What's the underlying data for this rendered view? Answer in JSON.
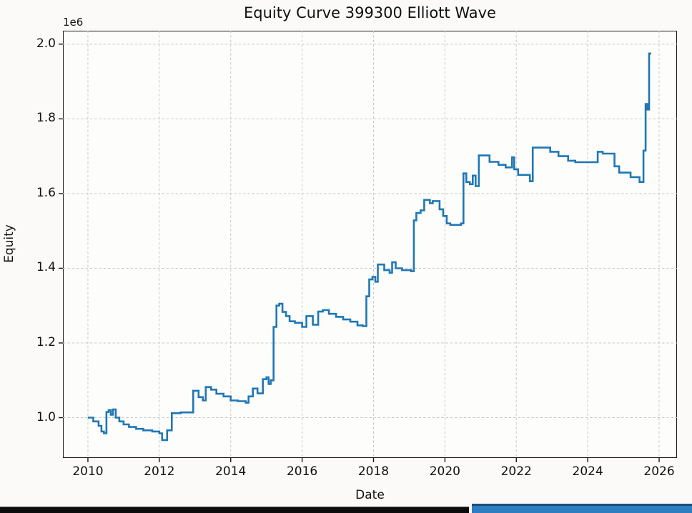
{
  "figure": {
    "title": "Equity Curve 399300 Elliott Wave",
    "y_offset_label": "1e6"
  },
  "chart_data": {
    "type": "line",
    "style": "step-after",
    "title": "Equity Curve 399300 Elliott Wave",
    "xlabel": "Date",
    "ylabel": "Equity",
    "y_offset_label": "1e6",
    "grid": true,
    "legend": false,
    "xlim": [
      2009.3,
      2026.5
    ],
    "ylim": [
      0.892,
      2.036
    ],
    "x_tick_values": [
      2010,
      2012,
      2014,
      2016,
      2018,
      2020,
      2022,
      2024,
      2026
    ],
    "x_tick_labels": [
      "2010",
      "2012",
      "2014",
      "2016",
      "2018",
      "2020",
      "2022",
      "2024",
      "2026"
    ],
    "y_tick_values": [
      1.0,
      1.2,
      1.4,
      1.6,
      1.8,
      2.0
    ],
    "y_tick_labels": [
      "1.0",
      "1.2",
      "1.4",
      "1.6",
      "1.8",
      "2.0"
    ],
    "y_unit_multiplier": "1e6",
    "line_color": "#1f77b4",
    "series": [
      {
        "name": "Equity",
        "x": [
          2010.0,
          2010.15,
          2010.3,
          2010.38,
          2010.45,
          2010.52,
          2010.58,
          2010.64,
          2010.7,
          2010.78,
          2010.88,
          2011.0,
          2011.15,
          2011.35,
          2011.55,
          2011.8,
          2012.0,
          2012.08,
          2012.22,
          2012.35,
          2012.6,
          2012.95,
          2013.1,
          2013.22,
          2013.3,
          2013.45,
          2013.6,
          2013.8,
          2014.0,
          2014.2,
          2014.42,
          2014.5,
          2014.62,
          2014.75,
          2014.9,
          2015.0,
          2015.06,
          2015.12,
          2015.2,
          2015.28,
          2015.36,
          2015.45,
          2015.55,
          2015.65,
          2015.8,
          2016.0,
          2016.12,
          2016.3,
          2016.45,
          2016.58,
          2016.75,
          2016.95,
          2017.15,
          2017.35,
          2017.55,
          2017.7,
          2017.8,
          2017.88,
          2017.97,
          2018.05,
          2018.12,
          2018.3,
          2018.45,
          2018.52,
          2018.62,
          2018.8,
          2019.05,
          2019.13,
          2019.2,
          2019.32,
          2019.42,
          2019.58,
          2019.66,
          2019.85,
          2019.95,
          2020.05,
          2020.15,
          2020.45,
          2020.52,
          2020.6,
          2020.7,
          2020.78,
          2020.86,
          2020.95,
          2021.25,
          2021.5,
          2021.7,
          2021.88,
          2021.94,
          2022.05,
          2022.38,
          2022.46,
          2022.95,
          2023.18,
          2023.45,
          2023.65,
          2024.28,
          2024.42,
          2024.75,
          2024.88,
          2025.2,
          2025.45,
          2025.56,
          2025.62,
          2025.67,
          2025.72
        ],
        "y": [
          1.0,
          0.99,
          0.978,
          0.963,
          0.958,
          1.015,
          1.02,
          1.008,
          1.022,
          1.0,
          0.99,
          0.982,
          0.975,
          0.97,
          0.966,
          0.963,
          0.958,
          0.94,
          0.966,
          1.012,
          1.014,
          1.072,
          1.055,
          1.046,
          1.082,
          1.075,
          1.064,
          1.057,
          1.046,
          1.044,
          1.04,
          1.057,
          1.078,
          1.065,
          1.103,
          1.108,
          1.09,
          1.1,
          1.243,
          1.3,
          1.305,
          1.283,
          1.272,
          1.258,
          1.254,
          1.243,
          1.272,
          1.249,
          1.284,
          1.288,
          1.278,
          1.27,
          1.263,
          1.257,
          1.247,
          1.245,
          1.325,
          1.37,
          1.377,
          1.364,
          1.41,
          1.395,
          1.388,
          1.416,
          1.4,
          1.395,
          1.392,
          1.528,
          1.548,
          1.555,
          1.583,
          1.574,
          1.58,
          1.558,
          1.54,
          1.52,
          1.516,
          1.52,
          1.654,
          1.631,
          1.625,
          1.648,
          1.62,
          1.702,
          1.685,
          1.677,
          1.67,
          1.697,
          1.665,
          1.65,
          1.633,
          1.723,
          1.712,
          1.7,
          1.688,
          1.684,
          1.712,
          1.707,
          1.673,
          1.656,
          1.644,
          1.631,
          1.715,
          1.84,
          1.825,
          1.975
        ]
      }
    ]
  },
  "colors": {
    "page_background": "#fbfaf8",
    "plot_background": "#fdfdfc",
    "grid": "#c9c9c9",
    "spine": "#1a1a1a",
    "text": "#111111",
    "line": "#1f77b4",
    "bottom_bar_left": "#0b0b0b",
    "bottom_bar_right": "#2d7dc1",
    "bottom_bar_right_edge": "#1d4e79"
  },
  "bottom_window_strips": {
    "left_strip_color": "#0b0b0b",
    "right_strip_color": "#2d7dc1"
  }
}
